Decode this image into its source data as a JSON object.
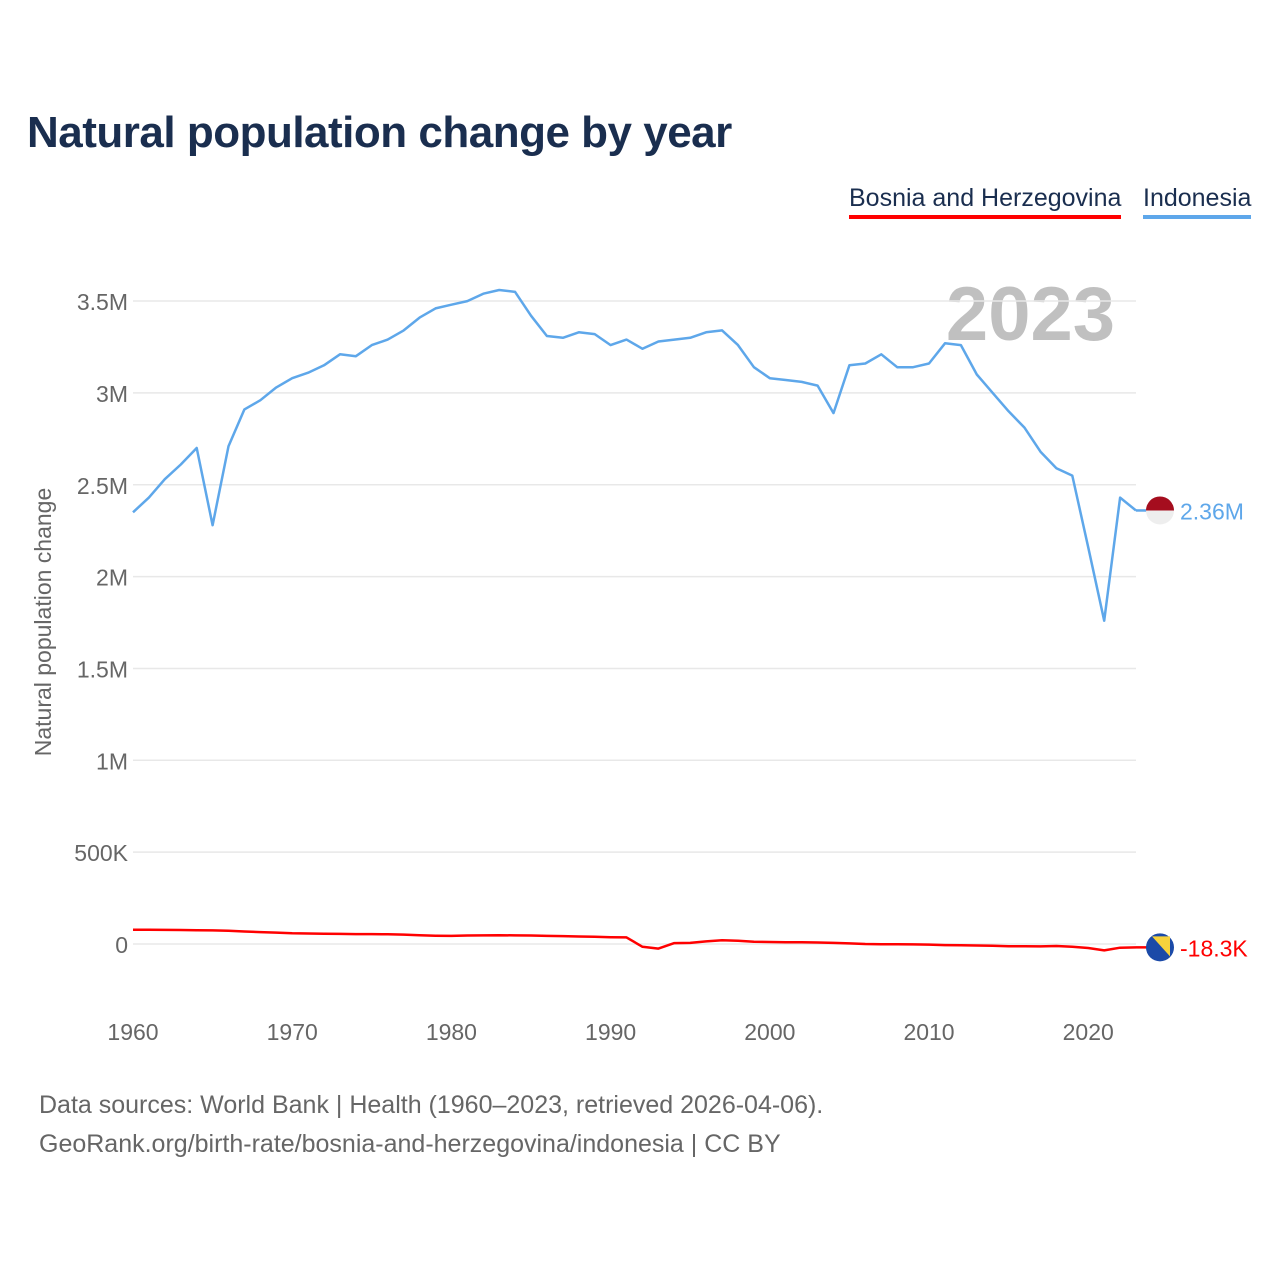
{
  "title": "Natural population change by year",
  "legend": [
    {
      "label": "Bosnia and Herzegovina",
      "color": "#ff0000"
    },
    {
      "label": "Indonesia",
      "color": "#5ea7ea"
    }
  ],
  "footer": {
    "line1": "Data sources: World Bank | Health (1960–2023, retrieved 2026-04-06).",
    "line2": "GeoRank.org/birth-rate/bosnia-and-herzegovina/indonesia | CC BY"
  },
  "chart_data": {
    "type": "line",
    "title": "Natural population change by year",
    "ylabel": "Natural population change",
    "xlabel": "",
    "xlim": [
      1960,
      2023
    ],
    "ylim": [
      -100000,
      3700000
    ],
    "x_ticks": [
      1960,
      1970,
      1980,
      1990,
      2000,
      2010,
      2020
    ],
    "x_tick_labels": [
      "1960",
      "1970",
      "1980",
      "1990",
      "2000",
      "2010",
      "2020"
    ],
    "y_ticks": [
      0,
      500000,
      1000000,
      1500000,
      2000000,
      2500000,
      3000000,
      3500000
    ],
    "y_tick_labels": [
      "0",
      "500K",
      "1M",
      "1.5M",
      "2M",
      "2.5M",
      "3M",
      "3.5M"
    ],
    "grid": true,
    "year_watermark": "2023",
    "legend_position": "top-right",
    "series": [
      {
        "name": "Indonesia",
        "color": "#5ea7ea",
        "end_label": "2.36M",
        "flag": "indonesia-flag",
        "values": [
          2350000,
          2430000,
          2530000,
          2610000,
          2700000,
          2280000,
          2710000,
          2910000,
          2960000,
          3030000,
          3080000,
          3110000,
          3150000,
          3210000,
          3200000,
          3260000,
          3290000,
          3340000,
          3410000,
          3460000,
          3480000,
          3500000,
          3540000,
          3560000,
          3550000,
          3420000,
          3310000,
          3300000,
          3330000,
          3320000,
          3260000,
          3290000,
          3240000,
          3280000,
          3290000,
          3300000,
          3330000,
          3340000,
          3260000,
          3140000,
          3080000,
          3070000,
          3060000,
          3040000,
          2890000,
          3150000,
          3160000,
          3210000,
          3140000,
          3140000,
          3160000,
          3270000,
          3260000,
          3100000,
          3000000,
          2900000,
          2810000,
          2680000,
          2590000,
          2550000,
          2160000,
          1760000,
          2430000,
          2360000
        ]
      },
      {
        "name": "Bosnia and Herzegovina",
        "color": "#ff0000",
        "end_label": "-18.3K",
        "flag": "bosnia-flag",
        "values": [
          78000,
          78000,
          77000,
          76000,
          75000,
          74000,
          72000,
          68000,
          65000,
          62000,
          58000,
          57000,
          56000,
          55000,
          54000,
          54000,
          53000,
          51000,
          48000,
          45000,
          44000,
          46000,
          47000,
          48000,
          47000,
          46000,
          44000,
          43000,
          41000,
          39000,
          37000,
          36000,
          -15000,
          -25000,
          5000,
          6000,
          14000,
          20000,
          18000,
          12000,
          11000,
          9000,
          9000,
          8000,
          6000,
          3000,
          0,
          -1000,
          -1000,
          -2000,
          -3000,
          -6000,
          -7000,
          -8000,
          -10000,
          -12000,
          -12000,
          -13000,
          -11000,
          -15000,
          -22000,
          -35000,
          -20000,
          -18300
        ]
      }
    ]
  }
}
